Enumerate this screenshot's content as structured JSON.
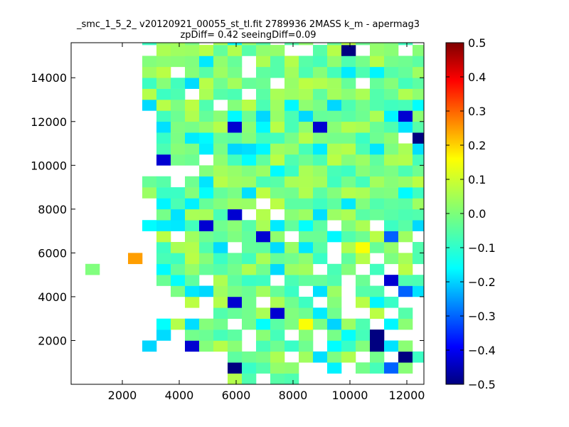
{
  "chart_data": {
    "type": "heatmap",
    "title_line1": "_smc_1_5_2_ v20120921_00055_st_tl.fit 2789936 2MASS k_m - apermag3",
    "title_line2": "zpDiff= 0.42 seeingDiff=0.09",
    "xlabel": "",
    "ylabel": "",
    "xlim": [
      200,
      12600
    ],
    "ylim": [
      0,
      15600
    ],
    "x_ticks": [
      2000,
      4000,
      6000,
      8000,
      10000,
      12000
    ],
    "x_tick_labels": [
      "2000",
      "4000",
      "6000",
      "8000",
      "10000",
      "12000"
    ],
    "y_ticks": [
      2000,
      4000,
      6000,
      8000,
      10000,
      12000,
      14000
    ],
    "y_tick_labels": [
      "2000",
      "4000",
      "6000",
      "8000",
      "10000",
      "12000",
      "14000"
    ],
    "colormap": "jet",
    "color_range": [
      -0.5,
      0.5
    ],
    "colorbar_ticks": [
      0.5,
      0.4,
      0.3,
      0.2,
      0.1,
      0.0,
      -0.1,
      -0.2,
      -0.3,
      -0.4,
      -0.5
    ],
    "colorbar_tick_labels": [
      "0.5",
      "0.4",
      "0.3",
      "0.2",
      "0.1",
      "0.0",
      "−0.1",
      "−0.2",
      "−0.3",
      "−0.4",
      "−0.5"
    ],
    "cell_size": [
      500,
      500
    ],
    "x_origin": 200,
    "y_origin": 0,
    "grid": false,
    "rows": [
      "...........__.__.............",
      "...........a____..:.__c_.....",
      "...........____._:__._.a_....",
      ".....:..b___.____.:__a:_.....",
      "......:.____.__._._:_a..._...",
      "......:_:__._:__;_:__.:_.....",
      "..........____b__:_.._._.....",
      "........_._b_.___._._:_...bb.",
      "......._::______.:_.__.c:._..",
      "......_:_.____.____._.b__....",
      "._....:_______:__.__._._.._..",
      "......____________.__.____...",
      "......____:.__:_:_._;__._____",
      "......_._____b_.__:___c_.._.:",
      ".....:::_b____:_:_.__.__:_._.",
      "......_:___b._.__:___________",
      "......:_:____._____:_______..",
      ".....____:__:__________:_____",
      ".....__._:________________.:.",
      "........._____:_____________.",
      "......b__.__:_______________.",
      "......___:_:::___:___:__:__..",
      "......__::_____________.a__..",
      "......:____b_:___b_____:___..",
      "......_____:_:__:_____:b__...",
      ".....:____.____:__:_____:____",
      ".....___.___.______________..",
      ".....___:_____._____._____...",
      ".....__.____.______:_:______.",
      ".....____:__._____________.__",
      "......_________..__a.__._b...",
      ".....____._:__.__.______._...",
      ".....___.__:__._____________.",
      "................:_________...",
      "................__:__________",
      "...............__..___._b....",
      "..............______:__......",
      "..............:________......",
      "...............__._.__.......",
      "..............._______......."
    ]
  }
}
